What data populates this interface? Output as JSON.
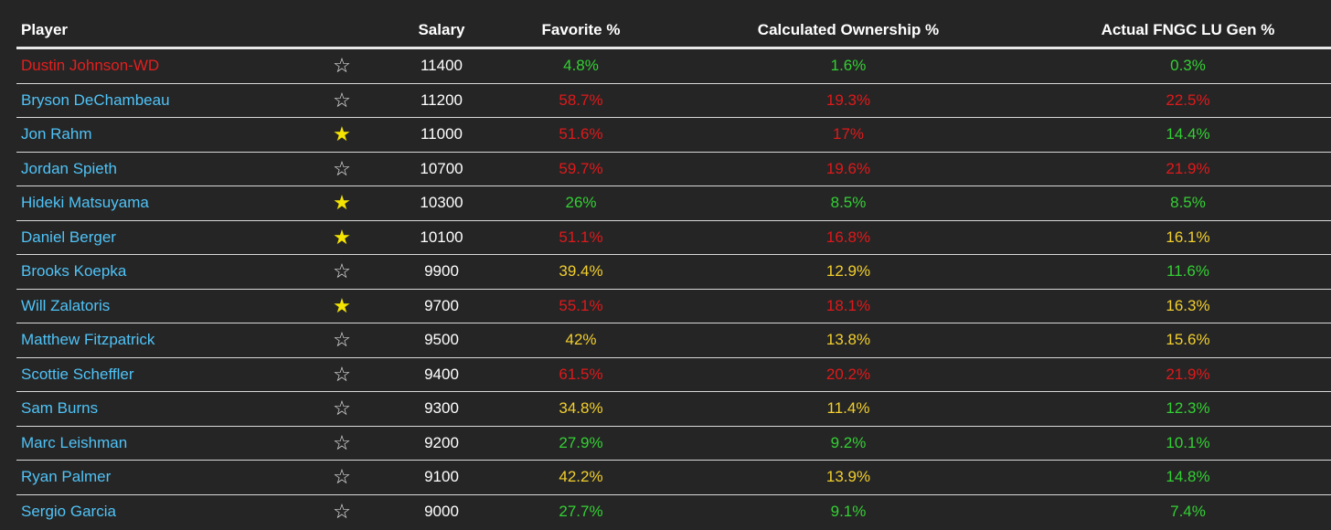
{
  "headers": {
    "player": "Player",
    "star": "",
    "salary": "Salary",
    "favorite": "Favorite %",
    "calculated": "Calculated Ownership %",
    "actual": "Actual FNGC LU Gen %"
  },
  "colors": {
    "background": "#252525",
    "player_link": "#4fc3f7",
    "withdrawn": "#e41f1f",
    "green": "#33d033",
    "red": "#e0191b",
    "yellow": "#f2cf2e",
    "star_filled": "#f5e400"
  },
  "rows": [
    {
      "player": "Dustin Johnson-WD",
      "withdrawn": true,
      "star": "empty",
      "salary": "11400",
      "favorite": "4.8%",
      "favorite_color": "green",
      "calculated": "1.6%",
      "calculated_color": "green",
      "actual": "0.3%",
      "actual_color": "green"
    },
    {
      "player": "Bryson DeChambeau",
      "withdrawn": false,
      "star": "empty",
      "salary": "11200",
      "favorite": "58.7%",
      "favorite_color": "red",
      "calculated": "19.3%",
      "calculated_color": "red",
      "actual": "22.5%",
      "actual_color": "red"
    },
    {
      "player": "Jon Rahm",
      "withdrawn": false,
      "star": "filled",
      "salary": "11000",
      "favorite": "51.6%",
      "favorite_color": "red",
      "calculated": "17%",
      "calculated_color": "red",
      "actual": "14.4%",
      "actual_color": "green"
    },
    {
      "player": "Jordan Spieth",
      "withdrawn": false,
      "star": "empty",
      "salary": "10700",
      "favorite": "59.7%",
      "favorite_color": "red",
      "calculated": "19.6%",
      "calculated_color": "red",
      "actual": "21.9%",
      "actual_color": "red"
    },
    {
      "player": "Hideki Matsuyama",
      "withdrawn": false,
      "star": "filled",
      "salary": "10300",
      "favorite": "26%",
      "favorite_color": "green",
      "calculated": "8.5%",
      "calculated_color": "green",
      "actual": "8.5%",
      "actual_color": "green"
    },
    {
      "player": "Daniel Berger",
      "withdrawn": false,
      "star": "filled",
      "salary": "10100",
      "favorite": "51.1%",
      "favorite_color": "red",
      "calculated": "16.8%",
      "calculated_color": "red",
      "actual": "16.1%",
      "actual_color": "yellow"
    },
    {
      "player": "Brooks Koepka",
      "withdrawn": false,
      "star": "empty",
      "salary": "9900",
      "favorite": "39.4%",
      "favorite_color": "yellow",
      "calculated": "12.9%",
      "calculated_color": "yellow",
      "actual": "11.6%",
      "actual_color": "green"
    },
    {
      "player": "Will Zalatoris",
      "withdrawn": false,
      "star": "filled",
      "salary": "9700",
      "favorite": "55.1%",
      "favorite_color": "red",
      "calculated": "18.1%",
      "calculated_color": "red",
      "actual": "16.3%",
      "actual_color": "yellow"
    },
    {
      "player": "Matthew Fitzpatrick",
      "withdrawn": false,
      "star": "empty",
      "salary": "9500",
      "favorite": "42%",
      "favorite_color": "yellow",
      "calculated": "13.8%",
      "calculated_color": "yellow",
      "actual": "15.6%",
      "actual_color": "yellow"
    },
    {
      "player": "Scottie Scheffler",
      "withdrawn": false,
      "star": "empty",
      "salary": "9400",
      "favorite": "61.5%",
      "favorite_color": "red",
      "calculated": "20.2%",
      "calculated_color": "red",
      "actual": "21.9%",
      "actual_color": "red"
    },
    {
      "player": "Sam Burns",
      "withdrawn": false,
      "star": "empty",
      "salary": "9300",
      "favorite": "34.8%",
      "favorite_color": "yellow",
      "calculated": "11.4%",
      "calculated_color": "yellow",
      "actual": "12.3%",
      "actual_color": "green"
    },
    {
      "player": "Marc Leishman",
      "withdrawn": false,
      "star": "empty",
      "salary": "9200",
      "favorite": "27.9%",
      "favorite_color": "green",
      "calculated": "9.2%",
      "calculated_color": "green",
      "actual": "10.1%",
      "actual_color": "green"
    },
    {
      "player": "Ryan Palmer",
      "withdrawn": false,
      "star": "empty",
      "salary": "9100",
      "favorite": "42.2%",
      "favorite_color": "yellow",
      "calculated": "13.9%",
      "calculated_color": "yellow",
      "actual": "14.8%",
      "actual_color": "green"
    },
    {
      "player": "Sergio Garcia",
      "withdrawn": false,
      "star": "empty",
      "salary": "9000",
      "favorite": "27.7%",
      "favorite_color": "green",
      "calculated": "9.1%",
      "calculated_color": "green",
      "actual": "7.4%",
      "actual_color": "green"
    }
  ]
}
